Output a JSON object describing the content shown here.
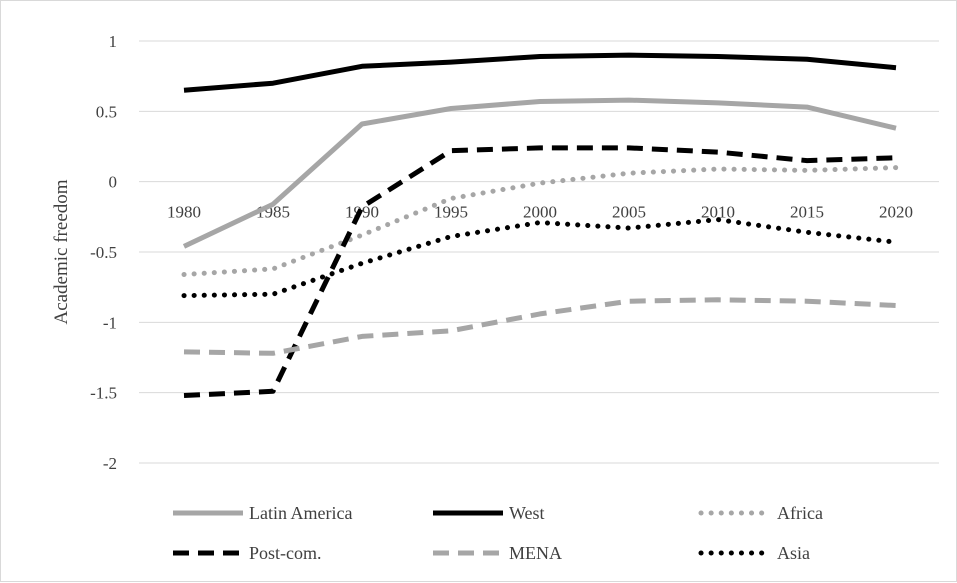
{
  "chart_data": {
    "type": "line",
    "ylabel": "Academic freedom",
    "ylim": [
      -2,
      1
    ],
    "yticks": [
      1,
      0.5,
      0,
      -0.5,
      -1,
      -1.5,
      -2
    ],
    "ytick_labels": [
      "1",
      "0.5",
      "0",
      "-0.5",
      "-1",
      "-1.5",
      "-2"
    ],
    "x": [
      "1980",
      "1985",
      "1990",
      "1995",
      "2000",
      "2005",
      "2010",
      "2015",
      "2020"
    ],
    "grid": "horizontal",
    "legend_position": "bottom",
    "series": [
      {
        "name": "Latin America",
        "color": "#a6a6a6",
        "style": "solid",
        "values": [
          -0.46,
          -0.16,
          0.41,
          0.52,
          0.57,
          0.58,
          0.56,
          0.53,
          0.38
        ]
      },
      {
        "name": "West",
        "color": "#000000",
        "style": "solid",
        "values": [
          0.65,
          0.7,
          0.82,
          0.85,
          0.89,
          0.9,
          0.89,
          0.87,
          0.81
        ]
      },
      {
        "name": "Africa",
        "color": "#a6a6a6",
        "style": "dotted",
        "values": [
          -0.66,
          -0.62,
          -0.38,
          -0.12,
          -0.01,
          0.06,
          0.09,
          0.08,
          0.1
        ]
      },
      {
        "name": "Post-com.",
        "color": "#000000",
        "style": "dashed",
        "values": [
          -1.52,
          -1.49,
          -0.18,
          0.22,
          0.24,
          0.24,
          0.21,
          0.15,
          0.17
        ]
      },
      {
        "name": "MENA",
        "color": "#a6a6a6",
        "style": "dashed",
        "values": [
          -1.21,
          -1.22,
          -1.1,
          -1.06,
          -0.94,
          -0.85,
          -0.84,
          -0.85,
          -0.88
        ]
      },
      {
        "name": "Asia",
        "color": "#000000",
        "style": "dotted",
        "values": [
          -0.81,
          -0.8,
          -0.58,
          -0.39,
          -0.29,
          -0.33,
          -0.27,
          -0.36,
          -0.43
        ]
      }
    ]
  }
}
